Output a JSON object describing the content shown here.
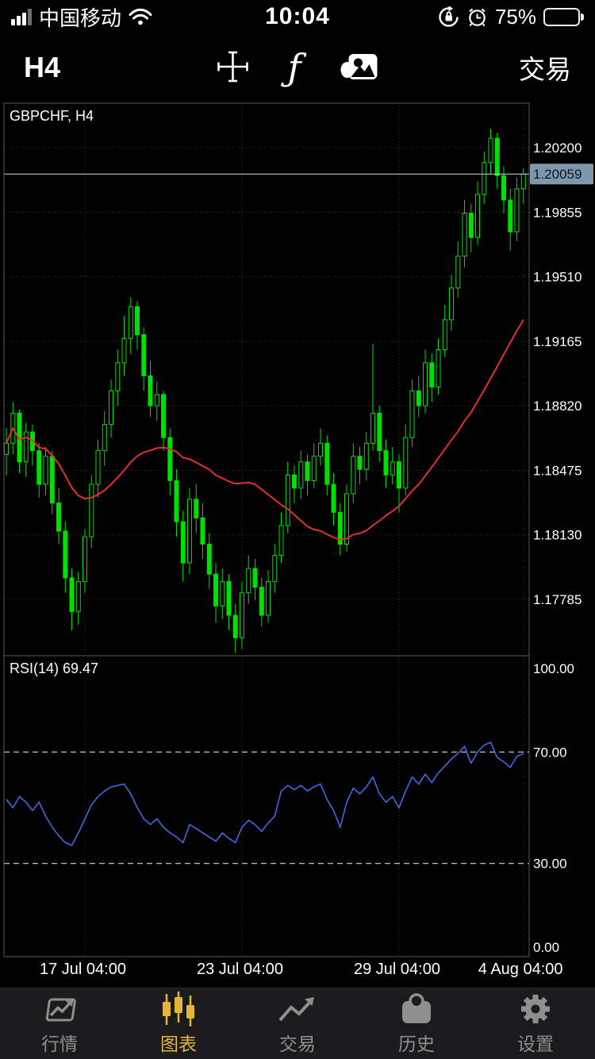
{
  "status_bar": {
    "carrier": "中国移动",
    "time": "10:04",
    "battery_percent": "75%"
  },
  "toolbar": {
    "timeframe": "H4",
    "indicators_glyph": "ƒ",
    "trade_label": "交易"
  },
  "chart": {
    "symbol_label": "GBPCHF, H4",
    "rsi_label": "RSI(14) 69.47",
    "current_price_label": "1.20059",
    "colors": {
      "candle_green": "#00e000",
      "ma_red": "#e03131",
      "rsi_blue": "#4169e1",
      "badge_bg": "#7d97ad",
      "badge_text": "#0b1520",
      "grid": "#3c3c3c",
      "panel_border": "#5a5a5a",
      "price_line": "#cdd6de",
      "level_dash": "#d8d8d8",
      "accent_gold": "#e3b53a",
      "inactive_gray": "#8f8f8f"
    }
  },
  "chart_data": [
    {
      "type": "candlestick",
      "title": "GBPCHF, H4",
      "symbol": "GBPCHF",
      "timeframe": "H4",
      "current_price": 1.20059,
      "y_ticks": [
        "1.20200",
        "1.19855",
        "1.19510",
        "1.19165",
        "1.18820",
        "1.18475",
        "1.18130",
        "1.17785"
      ],
      "x_ticks": [
        {
          "label": "17 Jul 04:00",
          "i": 12
        },
        {
          "label": "23 Jul 04:00",
          "i": 36
        },
        {
          "label": "29 Jul 04:00",
          "i": 60
        },
        {
          "label": "4 Aug 04:00",
          "i": 79
        }
      ],
      "overlay_ma": {
        "name": "MA",
        "period": 26,
        "color": "#e03131"
      },
      "candles": [
        [
          1.1856,
          1.187,
          1.1845,
          1.1862
        ],
        [
          1.1862,
          1.1884,
          1.1856,
          1.1878
        ],
        [
          1.1878,
          1.188,
          1.1846,
          1.1852
        ],
        [
          1.1852,
          1.1873,
          1.1844,
          1.1868
        ],
        [
          1.1868,
          1.1872,
          1.185,
          1.1858
        ],
        [
          1.1858,
          1.1862,
          1.1833,
          1.184
        ],
        [
          1.184,
          1.186,
          1.1834,
          1.1855
        ],
        [
          1.1855,
          1.1858,
          1.1824,
          1.183
        ],
        [
          1.183,
          1.1838,
          1.1808,
          1.1815
        ],
        [
          1.1815,
          1.182,
          1.1782,
          1.179
        ],
        [
          1.179,
          1.1795,
          1.1762,
          1.1772
        ],
        [
          1.1772,
          1.1793,
          1.1765,
          1.1788
        ],
        [
          1.1788,
          1.1816,
          1.1782,
          1.1812
        ],
        [
          1.1812,
          1.1845,
          1.1806,
          1.184
        ],
        [
          1.184,
          1.1864,
          1.1833,
          1.1858
        ],
        [
          1.1858,
          1.1879,
          1.185,
          1.1872
        ],
        [
          1.1872,
          1.1896,
          1.1865,
          1.189
        ],
        [
          1.189,
          1.1912,
          1.1882,
          1.1905
        ],
        [
          1.1905,
          1.193,
          1.1898,
          1.1918
        ],
        [
          1.1918,
          1.194,
          1.191,
          1.1935
        ],
        [
          1.1935,
          1.1938,
          1.1912,
          1.192
        ],
        [
          1.192,
          1.1924,
          1.189,
          1.1898
        ],
        [
          1.1898,
          1.1906,
          1.1876,
          1.1882
        ],
        [
          1.1882,
          1.1895,
          1.1874,
          1.1888
        ],
        [
          1.1888,
          1.189,
          1.1858,
          1.1865
        ],
        [
          1.1865,
          1.187,
          1.1834,
          1.1842
        ],
        [
          1.1842,
          1.1848,
          1.1812,
          1.182
        ],
        [
          1.182,
          1.1826,
          1.1788,
          1.1798
        ],
        [
          1.1798,
          1.1838,
          1.1792,
          1.1832
        ],
        [
          1.1832,
          1.184,
          1.1814,
          1.1822
        ],
        [
          1.1822,
          1.183,
          1.18,
          1.1808
        ],
        [
          1.1808,
          1.1814,
          1.1784,
          1.1792
        ],
        [
          1.1792,
          1.1798,
          1.1766,
          1.1775
        ],
        [
          1.1775,
          1.1795,
          1.1768,
          1.1788
        ],
        [
          1.1788,
          1.1792,
          1.1762,
          1.177
        ],
        [
          1.177,
          1.1776,
          1.175,
          1.1758
        ],
        [
          1.1758,
          1.1788,
          1.1752,
          1.1782
        ],
        [
          1.1782,
          1.1802,
          1.1776,
          1.1795
        ],
        [
          1.1795,
          1.18,
          1.1778,
          1.1785
        ],
        [
          1.1785,
          1.179,
          1.1764,
          1.177
        ],
        [
          1.177,
          1.1794,
          1.1766,
          1.1788
        ],
        [
          1.1788,
          1.1808,
          1.1782,
          1.1802
        ],
        [
          1.1802,
          1.1825,
          1.1798,
          1.1818
        ],
        [
          1.1818,
          1.1852,
          1.1814,
          1.1845
        ],
        [
          1.1845,
          1.185,
          1.183,
          1.1838
        ],
        [
          1.1838,
          1.1858,
          1.1832,
          1.1852
        ],
        [
          1.1852,
          1.1856,
          1.1834,
          1.1842
        ],
        [
          1.1842,
          1.1862,
          1.1838,
          1.1855
        ],
        [
          1.1855,
          1.187,
          1.185,
          1.1862
        ],
        [
          1.1862,
          1.1866,
          1.1834,
          1.184
        ],
        [
          1.184,
          1.1846,
          1.1818,
          1.1825
        ],
        [
          1.1825,
          1.183,
          1.1802,
          1.1808
        ],
        [
          1.1808,
          1.184,
          1.1804,
          1.1835
        ],
        [
          1.1835,
          1.1862,
          1.183,
          1.1855
        ],
        [
          1.1855,
          1.186,
          1.184,
          1.1848
        ],
        [
          1.1848,
          1.1868,
          1.1842,
          1.1862
        ],
        [
          1.1862,
          1.1915,
          1.1858,
          1.1878
        ],
        [
          1.1878,
          1.1882,
          1.1852,
          1.1858
        ],
        [
          1.1858,
          1.1864,
          1.1838,
          1.1845
        ],
        [
          1.1845,
          1.186,
          1.184,
          1.1852
        ],
        [
          1.1852,
          1.1856,
          1.1825,
          1.1838
        ],
        [
          1.1838,
          1.1872,
          1.1834,
          1.1865
        ],
        [
          1.1865,
          1.1896,
          1.186,
          1.189
        ],
        [
          1.189,
          1.1898,
          1.1876,
          1.1882
        ],
        [
          1.1882,
          1.1912,
          1.1878,
          1.1905
        ],
        [
          1.1905,
          1.191,
          1.1884,
          1.1892
        ],
        [
          1.1892,
          1.1918,
          1.1888,
          1.1912
        ],
        [
          1.1912,
          1.1936,
          1.1908,
          1.1928
        ],
        [
          1.1928,
          1.1952,
          1.1922,
          1.1945
        ],
        [
          1.1945,
          1.197,
          1.194,
          1.1962
        ],
        [
          1.1962,
          1.1992,
          1.1956,
          1.1985
        ],
        [
          1.1985,
          1.199,
          1.1964,
          1.1972
        ],
        [
          1.1972,
          1.2002,
          1.1968,
          1.1995
        ],
        [
          1.1995,
          1.2018,
          1.199,
          1.2012
        ],
        [
          1.2012,
          1.203,
          1.2006,
          1.2025
        ],
        [
          1.2025,
          1.2028,
          1.1998,
          1.2005
        ],
        [
          1.2005,
          1.201,
          1.1985,
          1.1992
        ],
        [
          1.1992,
          1.1998,
          1.1965,
          1.1975
        ],
        [
          1.1975,
          1.2004,
          1.197,
          1.1998
        ],
        [
          1.1998,
          1.2009,
          1.199,
          1.20059
        ]
      ]
    },
    {
      "type": "line",
      "name": "RSI(14)",
      "last_value": 69.47,
      "ylim": [
        0,
        100
      ],
      "ticks": [
        "100.00",
        "70.00",
        "30.00",
        "0.00"
      ],
      "levels": [
        70,
        30
      ],
      "values": [
        53,
        50,
        54,
        52,
        49,
        52,
        47,
        43,
        40,
        37.5,
        36.5,
        41,
        46,
        51,
        54,
        56,
        57.5,
        58,
        58.5,
        55,
        50,
        46,
        44,
        46,
        43,
        41,
        39.5,
        37.5,
        44,
        42.5,
        41,
        39.5,
        38,
        41,
        39,
        37.5,
        43,
        45.5,
        44,
        41.5,
        44.5,
        47,
        56,
        58,
        56.5,
        58,
        56,
        57.5,
        58.5,
        53,
        49,
        43,
        52,
        57,
        55,
        57.5,
        61,
        55,
        52,
        54,
        50,
        56,
        61,
        58.5,
        62,
        59,
        62.5,
        65,
        67.5,
        69.5,
        72,
        66,
        70,
        72.5,
        73.5,
        68,
        66.5,
        64.5,
        68.5,
        69.47
      ]
    }
  ],
  "nav": {
    "items": [
      {
        "id": "quotes",
        "label": "行情",
        "active": false
      },
      {
        "id": "charts",
        "label": "图表",
        "active": true
      },
      {
        "id": "trade",
        "label": "交易",
        "active": false
      },
      {
        "id": "history",
        "label": "历史",
        "active": false
      },
      {
        "id": "settings",
        "label": "设置",
        "active": false
      }
    ]
  }
}
